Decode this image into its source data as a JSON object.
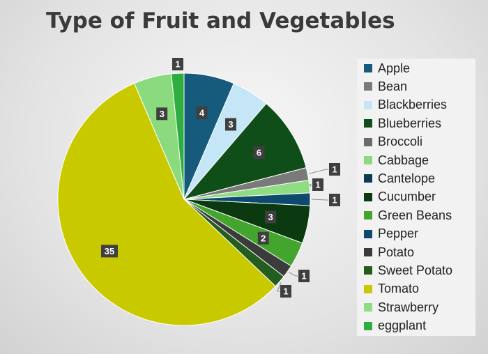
{
  "chart_data": {
    "type": "pie",
    "title": "Type of Fruit and Vegetables",
    "slices": [
      {
        "label": "Apple",
        "value": 4,
        "color": "#165a7c"
      },
      {
        "label": "Blackberries",
        "value": 3,
        "color": "#c5e6f6"
      },
      {
        "label": "Blueberries",
        "value": 6,
        "color": "#0f4e18"
      },
      {
        "label": "Bean",
        "value": 1,
        "color": "#7a7a7a"
      },
      {
        "label": "Strawberry",
        "value": 1,
        "color": "#8fdc82"
      },
      {
        "label": "Pepper",
        "value": 1,
        "color": "#0e4a6e"
      },
      {
        "label": "Cucumber",
        "value": 3,
        "color": "#0c3a10"
      },
      {
        "label": "Green Beans",
        "value": 2,
        "color": "#43a42e"
      },
      {
        "label": "Potato",
        "value": 1,
        "color": "#3b3b3b"
      },
      {
        "label": "Sweet Potato",
        "value": 1,
        "color": "#235d1f"
      },
      {
        "label": "Tomato",
        "value": 35,
        "color": "#c9c900"
      },
      {
        "label": "Cabbage",
        "value": 3,
        "color": "#8bdb7e"
      },
      {
        "label": "eggplant",
        "value": 1,
        "color": "#2eae41"
      }
    ],
    "legend": [
      {
        "label": "Apple",
        "color": "#165a7c"
      },
      {
        "label": "Bean",
        "color": "#7a7a7a"
      },
      {
        "label": "Blackberries",
        "color": "#c5e6f6"
      },
      {
        "label": "Blueberries",
        "color": "#0f4e18"
      },
      {
        "label": "Broccoli",
        "color": "#6b6b6b"
      },
      {
        "label": "Cabbage",
        "color": "#8bdb7e"
      },
      {
        "label": "Cantelope",
        "color": "#0b3a58"
      },
      {
        "label": "Cucumber",
        "color": "#0c3a10"
      },
      {
        "label": "Green Beans",
        "color": "#43a42e"
      },
      {
        "label": "Pepper",
        "color": "#0e4a6e"
      },
      {
        "label": "Potato",
        "color": "#3b3b3b"
      },
      {
        "label": "Sweet Potato",
        "color": "#235d1f"
      },
      {
        "label": "Tomato",
        "color": "#c9c900"
      },
      {
        "label": "Strawberry",
        "color": "#8fdc82"
      },
      {
        "label": "eggplant",
        "color": "#2eae41"
      }
    ],
    "legend_position": "right"
  }
}
